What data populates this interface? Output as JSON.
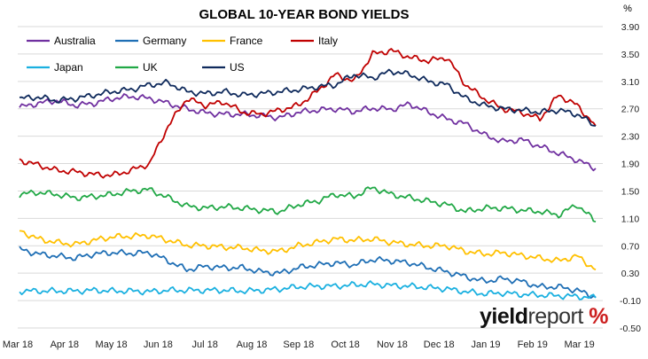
{
  "chart_data": {
    "type": "line",
    "title": "GLOBAL 10-YEAR BOND YIELDS",
    "y_unit": "%",
    "ylim": [
      -0.5,
      3.9
    ],
    "y_ticks": [
      "3.90",
      "3.50",
      "3.10",
      "2.70",
      "2.30",
      "1.90",
      "1.50",
      "1.10",
      "0.70",
      "0.30",
      "-0.10",
      "-0.50"
    ],
    "x_ticks": [
      "Mar 18",
      "Apr 18",
      "May 18",
      "Jun 18",
      "Jul 18",
      "Aug 18",
      "Sep 18",
      "Oct 18",
      "Nov 18",
      "Dec 18",
      "Jan 19",
      "Feb 19",
      "Mar 19"
    ],
    "grid": "horizontal",
    "legend_position": "top-left",
    "series": [
      {
        "name": "Australia",
        "color": "#7030a0",
        "values": [
          2.72,
          2.78,
          2.82,
          2.75,
          2.78,
          2.85,
          2.88,
          2.85,
          2.78,
          2.7,
          2.64,
          2.62,
          2.62,
          2.6,
          2.57,
          2.65,
          2.68,
          2.7,
          2.66,
          2.71,
          2.69,
          2.77,
          2.65,
          2.55,
          2.48,
          2.32,
          2.22,
          2.25,
          2.15,
          2.05,
          1.95,
          1.83
        ]
      },
      {
        "name": "Germany",
        "color": "#1f6fb5",
        "values": [
          0.65,
          0.58,
          0.55,
          0.52,
          0.58,
          0.6,
          0.59,
          0.6,
          0.48,
          0.35,
          0.4,
          0.38,
          0.38,
          0.32,
          0.3,
          0.38,
          0.42,
          0.45,
          0.42,
          0.5,
          0.48,
          0.45,
          0.38,
          0.32,
          0.25,
          0.18,
          0.22,
          0.18,
          0.1,
          0.1,
          0.05,
          -0.05
        ]
      },
      {
        "name": "France",
        "color": "#ffc000",
        "values": [
          0.92,
          0.8,
          0.75,
          0.72,
          0.78,
          0.83,
          0.84,
          0.85,
          0.78,
          0.71,
          0.7,
          0.68,
          0.67,
          0.63,
          0.62,
          0.7,
          0.75,
          0.8,
          0.78,
          0.8,
          0.75,
          0.72,
          0.7,
          0.7,
          0.62,
          0.58,
          0.6,
          0.56,
          0.52,
          0.48,
          0.55,
          0.35
        ]
      },
      {
        "name": "Italy",
        "color": "#c00000",
        "values": [
          1.95,
          1.88,
          1.8,
          1.78,
          1.74,
          1.73,
          1.8,
          1.9,
          2.45,
          2.85,
          2.75,
          2.8,
          2.65,
          2.62,
          2.68,
          2.75,
          2.95,
          3.2,
          3.1,
          3.5,
          3.55,
          3.45,
          3.4,
          3.45,
          3.05,
          2.85,
          2.7,
          2.65,
          2.55,
          2.9,
          2.75,
          2.45
        ]
      },
      {
        "name": "Japan",
        "color": "#1ab0e0",
        "values": [
          0.04,
          0.04,
          0.04,
          0.04,
          0.05,
          0.04,
          0.04,
          0.03,
          0.05,
          0.05,
          0.05,
          0.05,
          0.04,
          0.05,
          0.07,
          0.1,
          0.11,
          0.11,
          0.13,
          0.14,
          0.12,
          0.11,
          0.09,
          0.07,
          0.03,
          0.0,
          0.01,
          -0.01,
          -0.02,
          -0.03,
          -0.04,
          -0.06
        ]
      },
      {
        "name": "UK",
        "color": "#21a846",
        "values": [
          1.45,
          1.48,
          1.45,
          1.4,
          1.42,
          1.45,
          1.5,
          1.52,
          1.4,
          1.28,
          1.25,
          1.27,
          1.25,
          1.22,
          1.2,
          1.3,
          1.35,
          1.45,
          1.42,
          1.55,
          1.45,
          1.4,
          1.35,
          1.3,
          1.2,
          1.25,
          1.25,
          1.22,
          1.2,
          1.15,
          1.3,
          1.05
        ]
      },
      {
        "name": "US",
        "color": "#0f2a5c",
        "values": [
          2.85,
          2.87,
          2.82,
          2.85,
          2.9,
          2.95,
          2.98,
          3.05,
          3.08,
          2.95,
          2.92,
          2.95,
          2.9,
          2.92,
          2.95,
          2.98,
          3.02,
          3.05,
          3.2,
          3.15,
          3.25,
          3.2,
          3.1,
          3.05,
          2.85,
          2.75,
          2.7,
          2.68,
          2.65,
          2.68,
          2.62,
          2.45
        ]
      }
    ]
  },
  "watermark": {
    "part1": "yield",
    "part2": "report",
    "part3": "%"
  }
}
